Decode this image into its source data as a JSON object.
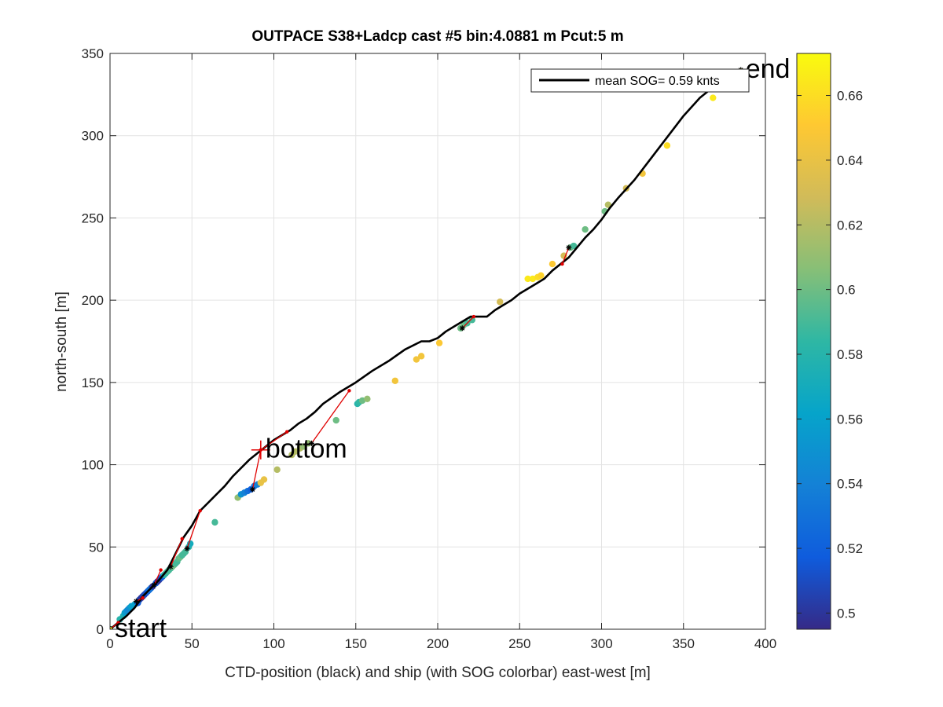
{
  "chart_data": {
    "type": "scatter",
    "title": "OUTPACE S38+Ladcp cast #5 bin:4.0881 m  Pcut:5 m",
    "xlabel": "CTD-position (black) and ship (with SOG colorbar) east-west [m]",
    "ylabel": "north-south [m]",
    "xlim": [
      0,
      400
    ],
    "ylim": [
      0,
      350
    ],
    "xticks": [
      0,
      50,
      100,
      150,
      200,
      250,
      300,
      350,
      400
    ],
    "yticks": [
      0,
      50,
      100,
      150,
      200,
      250,
      300,
      350
    ],
    "grid": true,
    "legend": {
      "position": "top-right",
      "entries": [
        "mean SOG=  0.59 knts"
      ]
    },
    "colorbar": {
      "min": 0.495,
      "max": 0.673,
      "ticks": [
        0.5,
        0.52,
        0.54,
        0.56,
        0.58,
        0.6,
        0.62,
        0.64,
        0.66
      ],
      "colors": [
        "#352a87",
        "#0f5cdd",
        "#1481d6",
        "#06a4ca",
        "#2eb7a4",
        "#87bf77",
        "#d1bb59",
        "#fec832",
        "#f9fb0e"
      ]
    },
    "annotations": [
      {
        "text": "start",
        "x": 0,
        "y": 0
      },
      {
        "text": "bottom",
        "x": 92,
        "y": 109
      },
      {
        "text": "end",
        "x": 385,
        "y": 340
      }
    ],
    "ctd_track": {
      "color": "#000000",
      "x": [
        0,
        5,
        10,
        15,
        20,
        25,
        30,
        35,
        40,
        45,
        50,
        55,
        60,
        65,
        70,
        75,
        80,
        85,
        90,
        95,
        100,
        105,
        110,
        115,
        120,
        125,
        130,
        140,
        150,
        160,
        170,
        180,
        190,
        195,
        200,
        205,
        210,
        215,
        220,
        225,
        230,
        235,
        240,
        245,
        250,
        255,
        260,
        265,
        270,
        275,
        280,
        285,
        290,
        295,
        300,
        305,
        310,
        320,
        330,
        340,
        350,
        360,
        370,
        375,
        385
      ],
      "y": [
        0,
        4,
        8,
        13,
        20,
        25,
        30,
        36,
        46,
        56,
        63,
        72,
        77,
        82,
        87,
        93,
        98,
        103,
        107,
        111,
        115,
        118,
        121,
        125,
        128,
        132,
        137,
        144,
        150,
        157,
        163,
        170,
        175,
        175,
        177,
        181,
        184,
        187,
        190,
        190,
        190,
        194,
        197,
        200,
        204,
        207,
        210,
        213,
        218,
        222,
        226,
        232,
        238,
        243,
        249,
        256,
        262,
        273,
        286,
        299,
        312,
        323,
        331,
        334,
        340
      ]
    },
    "ctd_markers": {
      "x": [
        0,
        16,
        27,
        37,
        47,
        87,
        123,
        215,
        280,
        385
      ],
      "y": [
        0,
        17,
        27,
        38,
        49,
        85,
        113,
        183,
        232,
        340
      ]
    },
    "offset_segments": {
      "color": "#e00000",
      "segments": [
        [
          [
            0,
            0
          ],
          [
            5,
            4
          ]
        ],
        [
          [
            16,
            17
          ],
          [
            20,
            19
          ]
        ],
        [
          [
            27,
            27
          ],
          [
            31,
            36
          ]
        ],
        [
          [
            37,
            38
          ],
          [
            44,
            55
          ]
        ],
        [
          [
            47,
            49
          ],
          [
            55,
            72
          ]
        ],
        [
          [
            87,
            85
          ],
          [
            92,
            109
          ],
          [
            108,
            120
          ]
        ],
        [
          [
            123,
            113
          ],
          [
            146,
            145
          ]
        ],
        [
          [
            215,
            183
          ],
          [
            222,
            190
          ]
        ],
        [
          [
            280,
            232
          ],
          [
            276,
            222
          ]
        ]
      ]
    },
    "ship_points": {
      "x": [
        0,
        6,
        8,
        9,
        10,
        11,
        12,
        13,
        15,
        17,
        18,
        19,
        20,
        21,
        22,
        23,
        24,
        25,
        26,
        28,
        29,
        30,
        31,
        32,
        33,
        34,
        35,
        36,
        37,
        38,
        39,
        40,
        41,
        42,
        43,
        44,
        45,
        46,
        48,
        49,
        64,
        78,
        80,
        82,
        84,
        86,
        88,
        90,
        92,
        94,
        102,
        111,
        113,
        116,
        118,
        121,
        138,
        151,
        152,
        154,
        157,
        174,
        187,
        190,
        201,
        214,
        216,
        218,
        221,
        238,
        255,
        258,
        261,
        263,
        270,
        277,
        281,
        283,
        290,
        302,
        304,
        315,
        325,
        340,
        368,
        385
      ],
      "y": [
        0,
        6,
        8,
        10,
        11,
        12,
        13,
        14,
        15,
        16,
        18,
        19,
        20,
        21,
        22,
        23,
        24,
        25,
        26,
        28,
        29,
        30,
        31,
        32,
        33,
        34,
        35,
        36,
        37,
        38,
        39,
        40,
        41,
        43,
        44,
        45,
        46,
        47,
        50,
        52,
        65,
        80,
        82,
        83,
        84,
        85,
        87,
        88,
        89,
        91,
        97,
        106,
        108,
        110,
        111,
        113,
        127,
        137,
        138,
        139,
        140,
        151,
        164,
        166,
        174,
        183,
        185,
        186,
        188,
        199,
        213,
        213,
        214,
        215,
        222,
        227,
        232,
        233,
        243,
        254,
        258,
        268,
        277,
        294,
        323,
        339
      ],
      "sog": [
        0.6,
        0.58,
        0.575,
        0.56,
        0.55,
        0.545,
        0.55,
        0.56,
        0.56,
        0.52,
        0.51,
        0.5,
        0.505,
        0.51,
        0.51,
        0.52,
        0.53,
        0.53,
        0.5,
        0.52,
        0.5,
        0.5,
        0.51,
        0.52,
        0.58,
        0.585,
        0.59,
        0.59,
        0.59,
        0.6,
        0.6,
        0.59,
        0.59,
        0.595,
        0.6,
        0.59,
        0.59,
        0.59,
        0.58,
        0.57,
        0.59,
        0.61,
        0.55,
        0.54,
        0.53,
        0.52,
        0.53,
        0.54,
        0.64,
        0.64,
        0.62,
        0.62,
        0.62,
        0.62,
        0.61,
        0.61,
        0.6,
        0.58,
        0.585,
        0.6,
        0.61,
        0.645,
        0.645,
        0.645,
        0.65,
        0.6,
        0.6,
        0.59,
        0.59,
        0.63,
        0.665,
        0.665,
        0.66,
        0.655,
        0.65,
        0.63,
        0.6,
        0.59,
        0.6,
        0.6,
        0.62,
        0.63,
        0.645,
        0.66,
        0.665,
        0.673
      ]
    }
  }
}
